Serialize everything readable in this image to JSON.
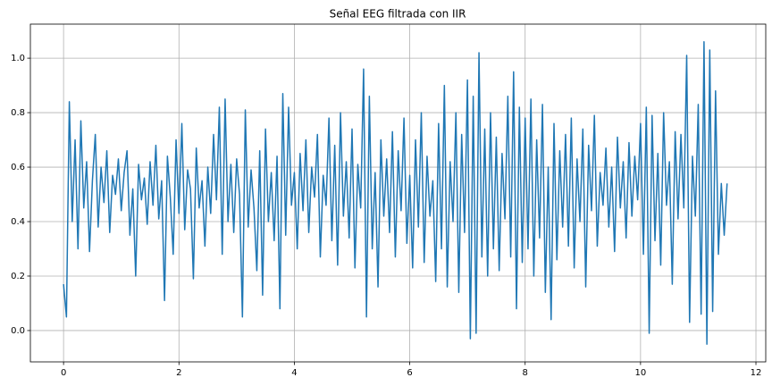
{
  "chart_data": {
    "type": "line",
    "title": "Señal EEG filtrada con IIR",
    "x": [
      0,
      0.05,
      0.1,
      0.15,
      0.2,
      0.25,
      0.3,
      0.35,
      0.4,
      0.45,
      0.5,
      0.55,
      0.6,
      0.65,
      0.7,
      0.75,
      0.8,
      0.85,
      0.9,
      0.95,
      1,
      1.05,
      1.1,
      1.15,
      1.2,
      1.25,
      1.3,
      1.35,
      1.4,
      1.45,
      1.5,
      1.55,
      1.6,
      1.65,
      1.7,
      1.75,
      1.8,
      1.85,
      1.9,
      1.95,
      2,
      2.05,
      2.1,
      2.15,
      2.2,
      2.25,
      2.3,
      2.35,
      2.4,
      2.45,
      2.5,
      2.55,
      2.6,
      2.65,
      2.7,
      2.75,
      2.8,
      2.85,
      2.9,
      2.95,
      3,
      3.05,
      3.1,
      3.15,
      3.2,
      3.25,
      3.3,
      3.35,
      3.4,
      3.45,
      3.5,
      3.55,
      3.6,
      3.65,
      3.7,
      3.75,
      3.8,
      3.85,
      3.9,
      3.95,
      4,
      4.05,
      4.1,
      4.15,
      4.2,
      4.25,
      4.3,
      4.35,
      4.4,
      4.45,
      4.5,
      4.55,
      4.6,
      4.65,
      4.7,
      4.75,
      4.8,
      4.85,
      4.9,
      4.95,
      5,
      5.05,
      5.1,
      5.15,
      5.2,
      5.25,
      5.3,
      5.35,
      5.4,
      5.45,
      5.5,
      5.55,
      5.6,
      5.65,
      5.7,
      5.75,
      5.8,
      5.85,
      5.9,
      5.95,
      6,
      6.05,
      6.1,
      6.15,
      6.2,
      6.25,
      6.3,
      6.35,
      6.4,
      6.45,
      6.5,
      6.55,
      6.6,
      6.65,
      6.7,
      6.75,
      6.8,
      6.85,
      6.9,
      6.95,
      7,
      7.05,
      7.1,
      7.15,
      7.2,
      7.25,
      7.3,
      7.35,
      7.4,
      7.45,
      7.5,
      7.55,
      7.6,
      7.65,
      7.7,
      7.75,
      7.8,
      7.85,
      7.9,
      7.95,
      8,
      8.05,
      8.1,
      8.15,
      8.2,
      8.25,
      8.3,
      8.35,
      8.4,
      8.45,
      8.5,
      8.55,
      8.6,
      8.65,
      8.7,
      8.75,
      8.8,
      8.85,
      8.9,
      8.95,
      9,
      9.05,
      9.1,
      9.15,
      9.2,
      9.25,
      9.3,
      9.35,
      9.4,
      9.45,
      9.5,
      9.55,
      9.6,
      9.65,
      9.7,
      9.75,
      9.8,
      9.85,
      9.9,
      9.95,
      10,
      10.05,
      10.1,
      10.15,
      10.2,
      10.25,
      10.3,
      10.35,
      10.4,
      10.45,
      10.5,
      10.55,
      10.6,
      10.65,
      10.7,
      10.75,
      10.8,
      10.85,
      10.9,
      10.95,
      11,
      11.05,
      11.1,
      11.15,
      11.2,
      11.25,
      11.3,
      11.35,
      11.4,
      11.45,
      11.5
    ],
    "values": [
      0.17,
      0.05,
      0.84,
      0.4,
      0.7,
      0.3,
      0.77,
      0.45,
      0.62,
      0.29,
      0.55,
      0.72,
      0.38,
      0.6,
      0.47,
      0.66,
      0.36,
      0.57,
      0.5,
      0.63,
      0.44,
      0.58,
      0.66,
      0.35,
      0.52,
      0.2,
      0.61,
      0.48,
      0.56,
      0.39,
      0.62,
      0.46,
      0.68,
      0.41,
      0.55,
      0.11,
      0.64,
      0.49,
      0.28,
      0.7,
      0.43,
      0.76,
      0.37,
      0.59,
      0.52,
      0.19,
      0.67,
      0.45,
      0.55,
      0.31,
      0.6,
      0.43,
      0.72,
      0.48,
      0.82,
      0.28,
      0.85,
      0.4,
      0.61,
      0.36,
      0.63,
      0.5,
      0.05,
      0.81,
      0.38,
      0.59,
      0.45,
      0.22,
      0.66,
      0.13,
      0.74,
      0.4,
      0.58,
      0.33,
      0.64,
      0.08,
      0.87,
      0.35,
      0.82,
      0.46,
      0.58,
      0.3,
      0.65,
      0.44,
      0.7,
      0.36,
      0.6,
      0.49,
      0.72,
      0.27,
      0.57,
      0.46,
      0.78,
      0.33,
      0.68,
      0.24,
      0.8,
      0.42,
      0.62,
      0.34,
      0.74,
      0.23,
      0.61,
      0.45,
      0.96,
      0.05,
      0.86,
      0.3,
      0.58,
      0.16,
      0.7,
      0.42,
      0.63,
      0.36,
      0.73,
      0.27,
      0.66,
      0.44,
      0.78,
      0.32,
      0.57,
      0.23,
      0.7,
      0.38,
      0.8,
      0.25,
      0.64,
      0.42,
      0.55,
      0.18,
      0.76,
      0.3,
      0.9,
      0.16,
      0.62,
      0.4,
      0.8,
      0.14,
      0.72,
      0.36,
      0.92,
      -0.03,
      0.86,
      -0.01,
      1.02,
      0.27,
      0.74,
      0.2,
      0.8,
      0.3,
      0.71,
      0.22,
      0.65,
      0.41,
      0.86,
      0.27,
      0.95,
      0.08,
      0.82,
      0.25,
      0.78,
      0.3,
      0.85,
      0.2,
      0.7,
      0.34,
      0.83,
      0.14,
      0.6,
      0.04,
      0.76,
      0.26,
      0.66,
      0.38,
      0.72,
      0.31,
      0.78,
      0.23,
      0.63,
      0.4,
      0.74,
      0.16,
      0.68,
      0.44,
      0.79,
      0.31,
      0.58,
      0.46,
      0.67,
      0.38,
      0.6,
      0.29,
      0.71,
      0.45,
      0.62,
      0.34,
      0.69,
      0.42,
      0.64,
      0.48,
      0.76,
      0.28,
      0.82,
      -0.01,
      0.79,
      0.33,
      0.65,
      0.24,
      0.8,
      0.46,
      0.62,
      0.17,
      0.73,
      0.41,
      0.72,
      0.45,
      1.01,
      0.03,
      0.64,
      0.42,
      0.83,
      0.06,
      1.06,
      -0.05,
      1.03,
      0.07,
      0.88,
      0.28,
      0.54,
      0.35,
      0.54
    ],
    "color": "#1f77b4",
    "xlim": [
      -0.575,
      12.17
    ],
    "ylim": [
      -0.115,
      1.125
    ],
    "xticks": [
      0,
      2,
      4,
      6,
      8,
      10,
      12
    ],
    "yticks": [
      {
        "value": 0,
        "label": "0.0"
      },
      0.2,
      0.4,
      0.6,
      0.8,
      {
        "value": 1,
        "label": "1.0"
      }
    ],
    "grid": true
  }
}
